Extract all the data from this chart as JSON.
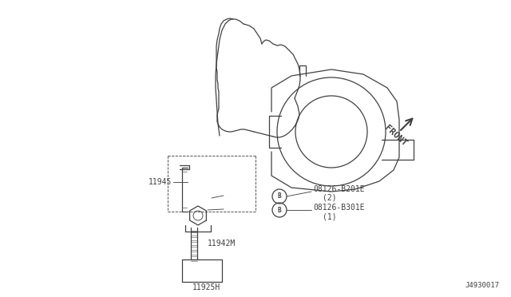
{
  "bg_color": "#ffffff",
  "line_color": "#404040",
  "diagram_id": "J4930017",
  "front_text": "FRONT",
  "labels": {
    "11945": [
      0.195,
      0.565
    ],
    "11942M": [
      0.315,
      0.695
    ],
    "11925H": [
      0.285,
      0.81
    ],
    "08126-B201E_line1": "08126-B201E",
    "08126-B201E_line2": "(2)",
    "08126-B301E_line1": "08126-B301E",
    "08126-B301E_line2": "(1)"
  }
}
